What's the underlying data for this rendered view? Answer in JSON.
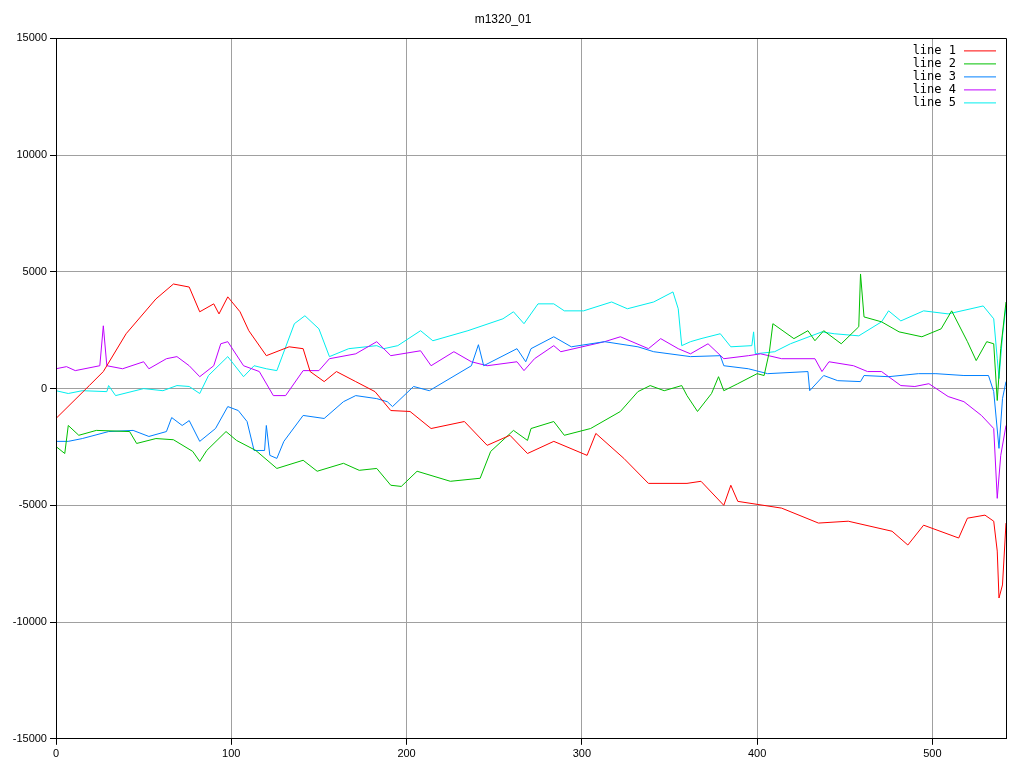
{
  "chart_data": {
    "type": "line",
    "title": "m1320_01",
    "xlim": [
      0,
      542
    ],
    "xticks": [
      0,
      100,
      200,
      300,
      400,
      500
    ],
    "ylim": [
      -15000,
      15000
    ],
    "yticks": [
      -15000,
      -10000,
      -5000,
      0,
      5000,
      10000,
      15000
    ],
    "grid": true,
    "legend": "top right",
    "marker": "none",
    "line_style": "solid",
    "series": [
      {
        "name": "line 1",
        "color": "#ff0000",
        "x": [
          0,
          19,
          27,
          40,
          57,
          67,
          76,
          82,
          90,
          93,
          98,
          105,
          110,
          120,
          133,
          141,
          145,
          153,
          160,
          171,
          182,
          191,
          202,
          214,
          233,
          246,
          259,
          269,
          284,
          303,
          308,
          324,
          338,
          360,
          368,
          381,
          385,
          389,
          414,
          435,
          452,
          477,
          486,
          495,
          515,
          520,
          530,
          535,
          537,
          538,
          540,
          542
        ],
        "values": [
          -1280,
          130,
          730,
          2350,
          3840,
          4480,
          4350,
          3290,
          3630,
          3200,
          3930,
          3290,
          2480,
          1410,
          1790,
          1710,
          730,
          300,
          730,
          300,
          -130,
          -940,
          -980,
          -1710,
          -1410,
          -2430,
          -2000,
          -2780,
          -2260,
          -2860,
          -1920,
          -2990,
          -4060,
          -4060,
          -3970,
          -5000,
          -4140,
          -4830,
          -5120,
          -5760,
          -5680,
          -6110,
          -6700,
          -5850,
          -6400,
          -5550,
          -5420,
          -5680,
          -6960,
          -8970,
          -8410,
          -5760
        ]
      },
      {
        "name": "line 2",
        "color": "#00c000",
        "x": [
          0,
          5,
          7,
          13,
          23,
          42,
          46,
          57,
          67,
          78,
          82,
          86,
          97,
          103,
          114,
          126,
          141,
          149,
          164,
          173,
          183,
          191,
          197,
          206,
          225,
          242,
          248,
          261,
          269,
          271,
          284,
          290,
          305,
          322,
          332,
          339,
          347,
          357,
          360,
          366,
          374,
          378,
          381,
          389,
          400,
          404,
          407,
          409,
          421,
          429,
          433,
          438,
          448,
          458,
          459,
          461,
          471,
          481,
          494,
          505,
          511,
          520,
          525,
          531,
          535,
          537,
          539,
          542
        ],
        "values": [
          -2480,
          -2780,
          -1580,
          -2000,
          -1790,
          -1840,
          -2350,
          -2140,
          -2190,
          -2690,
          -3120,
          -2650,
          -1840,
          -2220,
          -2650,
          -3420,
          -3070,
          -3540,
          -3200,
          -3500,
          -3420,
          -4140,
          -4190,
          -3540,
          -3970,
          -3840,
          -2690,
          -1790,
          -2220,
          -1710,
          -1410,
          -2000,
          -1710,
          -980,
          -130,
          130,
          -90,
          130,
          -300,
          -980,
          -210,
          510,
          -90,
          210,
          640,
          560,
          1580,
          2780,
          2140,
          2480,
          2050,
          2480,
          1920,
          2650,
          4910,
          3070,
          2860,
          2430,
          2220,
          2560,
          3330,
          2010,
          1200,
          2010,
          1920,
          -510,
          1710,
          3710
        ]
      },
      {
        "name": "line 3",
        "color": "#0080ff",
        "x": [
          0,
          7,
          15,
          30,
          44,
          53,
          63,
          66,
          72,
          76,
          82,
          91,
          98,
          104,
          109,
          113,
          119,
          120,
          122,
          126,
          130,
          141,
          153,
          164,
          171,
          183,
          189,
          192,
          204,
          213,
          237,
          241,
          244,
          263,
          268,
          271,
          284,
          294,
          313,
          332,
          341,
          362,
          379,
          381,
          395,
          406,
          429,
          430,
          438,
          446,
          459,
          461,
          475,
          492,
          502,
          518,
          532,
          535,
          538,
          540,
          542
        ],
        "values": [
          -2260,
          -2260,
          -2140,
          -1840,
          -1790,
          -2050,
          -1840,
          -1240,
          -1580,
          -1370,
          -2260,
          -1710,
          -770,
          -940,
          -1410,
          -2650,
          -2650,
          -1580,
          -2860,
          -2990,
          -2260,
          -1150,
          -1280,
          -560,
          -300,
          -430,
          -560,
          -770,
          90,
          -90,
          980,
          1880,
          980,
          1710,
          1150,
          1710,
          2220,
          1790,
          2010,
          1790,
          1580,
          1370,
          1410,
          980,
          850,
          640,
          730,
          -90,
          560,
          340,
          300,
          560,
          510,
          640,
          640,
          560,
          560,
          -130,
          -2560,
          -430,
          300
        ]
      },
      {
        "name": "line 4",
        "color": "#c000ff",
        "x": [
          0,
          6,
          11,
          25,
          27,
          29,
          38,
          50,
          53,
          63,
          69,
          76,
          82,
          90,
          94,
          98,
          107,
          116,
          124,
          131,
          141,
          150,
          156,
          171,
          183,
          191,
          208,
          214,
          227,
          237,
          246,
          263,
          267,
          273,
          284,
          288,
          313,
          322,
          338,
          345,
          355,
          362,
          372,
          381,
          395,
          402,
          414,
          433,
          437,
          441,
          455,
          463,
          471,
          482,
          490,
          498,
          509,
          518,
          528,
          535,
          537,
          539,
          542
        ],
        "values": [
          850,
          940,
          770,
          980,
          2690,
          980,
          850,
          1150,
          850,
          1280,
          1370,
          980,
          510,
          980,
          1920,
          2010,
          980,
          730,
          -300,
          -300,
          770,
          770,
          1280,
          1490,
          2010,
          1410,
          1620,
          980,
          1580,
          1150,
          980,
          1150,
          770,
          1280,
          1840,
          1580,
          2010,
          2220,
          1710,
          2140,
          1710,
          1490,
          1920,
          1280,
          1410,
          1490,
          1280,
          1280,
          730,
          1150,
          980,
          730,
          730,
          130,
          90,
          210,
          -340,
          -560,
          -1150,
          -1710,
          -4700,
          -2860,
          -1580
        ]
      },
      {
        "name": "line 5",
        "color": "#00eeee",
        "x": [
          0,
          7,
          15,
          29,
          30,
          34,
          50,
          61,
          69,
          76,
          82,
          87,
          98,
          107,
          113,
          120,
          126,
          136,
          142,
          150,
          156,
          167,
          183,
          187,
          195,
          208,
          215,
          235,
          255,
          261,
          267,
          275,
          284,
          290,
          301,
          317,
          326,
          341,
          352,
          355,
          357,
          362,
          368,
          379,
          385,
          397,
          398,
          399,
          410,
          419,
          437,
          444,
          458,
          471,
          475,
          482,
          495,
          509,
          522,
          529,
          535,
          537,
          538,
          540,
          542
        ],
        "values": [
          -90,
          -210,
          -90,
          -130,
          130,
          -300,
          0,
          -90,
          130,
          90,
          -210,
          560,
          1370,
          510,
          980,
          850,
          770,
          2780,
          3120,
          2560,
          1370,
          1710,
          1840,
          1710,
          1840,
          2480,
          2050,
          2480,
          2990,
          3290,
          2780,
          3630,
          3630,
          3330,
          3330,
          3710,
          3420,
          3710,
          4140,
          3420,
          1840,
          2010,
          2140,
          2350,
          1790,
          1840,
          2430,
          1490,
          1580,
          1920,
          2430,
          2350,
          2260,
          2860,
          3330,
          2900,
          3330,
          3200,
          3420,
          3540,
          2990,
          1280,
          430,
          2260,
          3540
        ]
      }
    ]
  }
}
